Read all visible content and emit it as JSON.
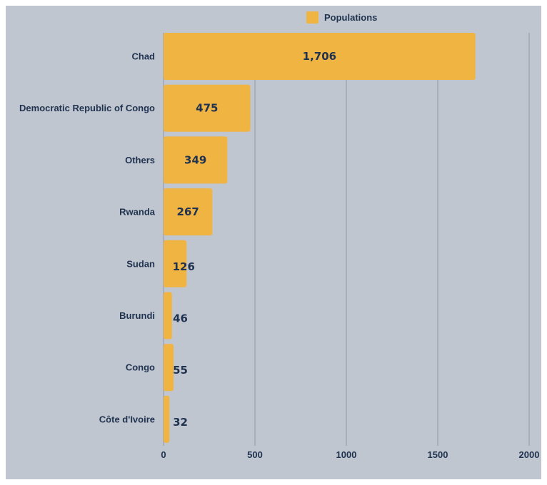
{
  "chart_data": {
    "type": "bar",
    "orientation": "horizontal",
    "categories": [
      "Chad",
      "Democratic Republic of Congo",
      "Others",
      "Rwanda",
      "Sudan",
      "Burundi",
      "Congo",
      "Côte d'Ivoire"
    ],
    "series": [
      {
        "name": "Populations",
        "values": [
          1706,
          475,
          349,
          267,
          126,
          46,
          55,
          32
        ],
        "labels": [
          "1,706",
          "475",
          "349",
          "267",
          "126",
          "46",
          "55",
          "32"
        ]
      }
    ],
    "xlim": [
      0,
      2000
    ],
    "xticks": [
      "0",
      "500",
      "1000",
      "1500",
      "2000"
    ],
    "grid": true,
    "legend_position": "top",
    "colors": {
      "bar": "#f0b443",
      "background": "#c0c6cf",
      "grid": "#8f98a5",
      "text": "#1f3250"
    }
  }
}
